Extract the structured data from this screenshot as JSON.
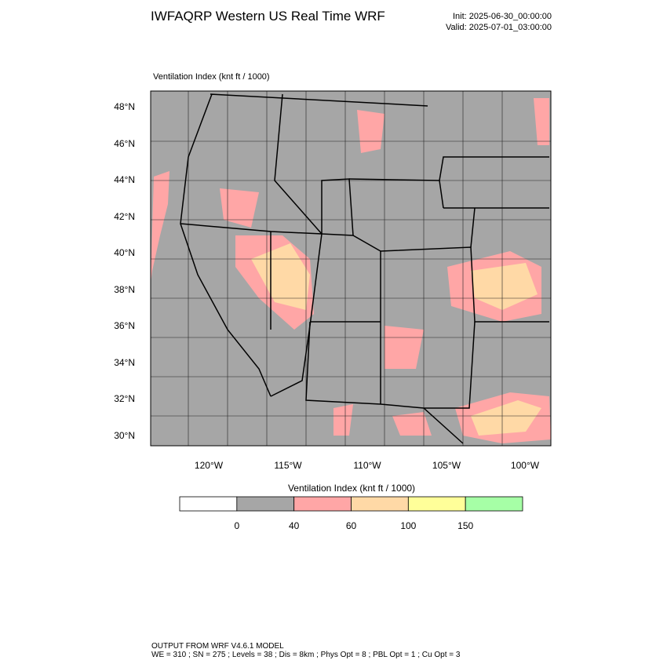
{
  "header": {
    "title": "IWFAQRP Western US Real Time WRF",
    "init": "Init: 2025-06-30_00:00:00",
    "valid": "Valid: 2025-07-01_03:00:00"
  },
  "map": {
    "label": "Ventilation Index   (knt ft / 1000)",
    "lat_labels": [
      "48°N",
      "46°N",
      "44°N",
      "42°N",
      "40°N",
      "38°N",
      "36°N",
      "34°N",
      "32°N",
      "30°N"
    ],
    "lon_labels": [
      "120°W",
      "115°W",
      "110°W",
      "105°W",
      "100°W"
    ]
  },
  "legend": {
    "title": "Ventilation Index   (knt ft / 1000)",
    "colors": [
      "#ffffff",
      "#a6a6a6",
      "#ffa6a6",
      "#ffd9a6",
      "#ffff99",
      "#a6ffa6"
    ],
    "labels": [
      "0",
      "40",
      "60",
      "100",
      "150"
    ]
  },
  "footer": {
    "line1": "OUTPUT FROM WRF V4.6.1 MODEL",
    "line2": "WE = 310 ; SN = 275 ; Levels = 38 ; Dis = 8km ; Phys Opt = 8 ; PBL Opt = 1 ; Cu Opt = 3"
  }
}
